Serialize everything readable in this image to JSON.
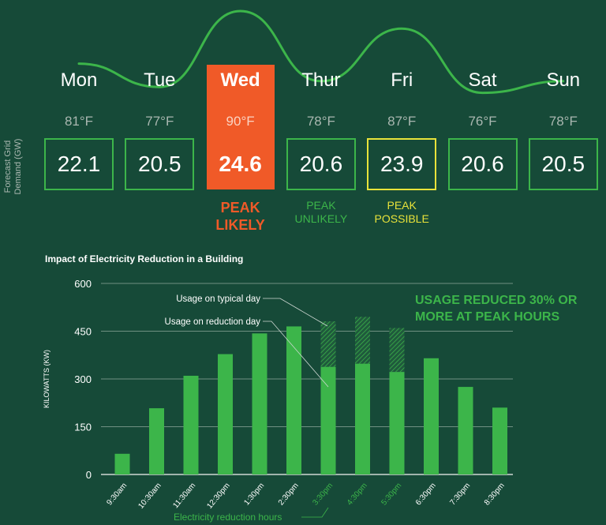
{
  "forecast": {
    "ylabel": "Forecast Grid Demand (GW)",
    "days": [
      {
        "name": "Mon",
        "temp": "81°F",
        "temp_f": 81,
        "demand": "22.1",
        "status": "",
        "status_color": ""
      },
      {
        "name": "Tue",
        "temp": "77°F",
        "temp_f": 77,
        "demand": "20.5",
        "status": "",
        "status_color": ""
      },
      {
        "name": "Wed",
        "temp": "90°F",
        "temp_f": 90,
        "demand": "24.6",
        "status": "PEAK LIKELY",
        "status_color": "#f05a28"
      },
      {
        "name": "Thur",
        "temp": "78°F",
        "temp_f": 78,
        "demand": "20.6",
        "status": "PEAK UNLIKELY",
        "status_color": "#3cb54a"
      },
      {
        "name": "Fri",
        "temp": "87°F",
        "temp_f": 87,
        "demand": "23.9",
        "status": "PEAK POSSIBLE",
        "status_color": "#e8e23a"
      },
      {
        "name": "Sat",
        "temp": "76°F",
        "temp_f": 76,
        "demand": "20.6",
        "status": "",
        "status_color": ""
      },
      {
        "name": "Sun",
        "temp": "78°F",
        "temp_f": 78,
        "demand": "20.5",
        "status": "",
        "status_color": ""
      }
    ],
    "colors": {
      "normal": "#3cb54a",
      "peak_likely": "#f05a28",
      "peak_possible": "#e8e23a",
      "line": "#3cb54a"
    }
  },
  "chart_data": {
    "type": "bar",
    "title": "Impact of Electricity Reduction in a Building",
    "ylabel": "KILOWATTS (KW)",
    "xlabel": "",
    "ylim": [
      0,
      600
    ],
    "yticks": [
      0,
      150,
      300,
      450,
      600
    ],
    "grid": true,
    "categories": [
      "9:30am",
      "10:30am",
      "11:30am",
      "12:30pm",
      "1:30pm",
      "2:30pm",
      "3:30pm",
      "4:30pm",
      "5:30pm",
      "6:30pm",
      "7:30pm",
      "8:30pm"
    ],
    "series": [
      {
        "name": "Usage on reduction day",
        "values": [
          65,
          208,
          310,
          378,
          443,
          465,
          338,
          348,
          322,
          365,
          275,
          210
        ]
      },
      {
        "name": "Usage on typical day",
        "values": [
          65,
          208,
          310,
          378,
          443,
          465,
          481,
          495,
          460,
          365,
          275,
          210
        ]
      }
    ],
    "reduction_hours": [
      "3:30pm",
      "4:30pm",
      "5:30pm"
    ],
    "annotations": {
      "typical": "Usage on typical day",
      "reduction": "Usage on reduction day",
      "reduction_hours": "Electricity reduction hours",
      "headline_1": "USAGE REDUCED 30% OR",
      "headline_2": "MORE AT PEAK HOURS"
    },
    "colors": {
      "bar": "#3cb54a",
      "highlight_label": "#3cb54a"
    }
  }
}
